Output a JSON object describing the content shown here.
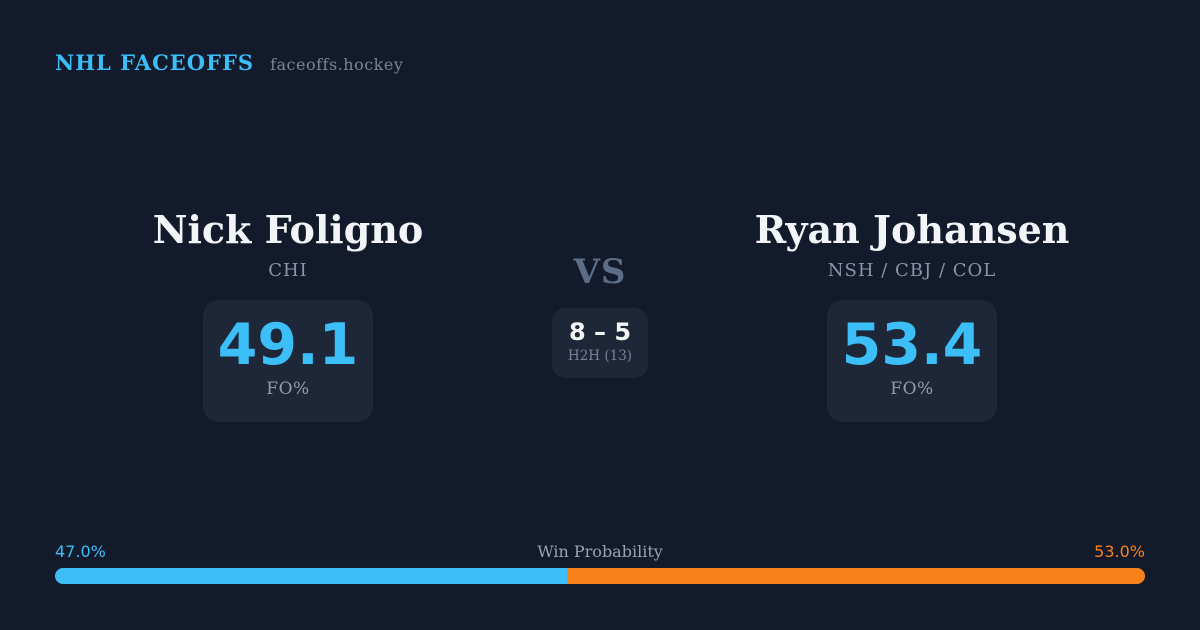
{
  "header": {
    "brand": "NHL FACEOFFS",
    "site": "faceoffs.hockey"
  },
  "matchup": {
    "vs_label": "VS",
    "h2h": {
      "score": "8 – 5",
      "label": "H2H (13)"
    },
    "players": [
      {
        "name": "Nick Foligno",
        "teams": "CHI",
        "stat_value": "49.1",
        "stat_label": "FO%"
      },
      {
        "name": "Ryan Johansen",
        "teams": "NSH / CBJ / COL",
        "stat_value": "53.4",
        "stat_label": "FO%"
      }
    ]
  },
  "win_probability": {
    "title": "Win Probability",
    "left_label": "47.0%",
    "right_label": "53.0%",
    "left_value": 47.0,
    "right_value": 53.0
  },
  "colors": {
    "background": "#121A2B",
    "box_background": "#1D2737",
    "accent_blue": "#3CBFF8",
    "accent_orange": "#F8811C"
  }
}
